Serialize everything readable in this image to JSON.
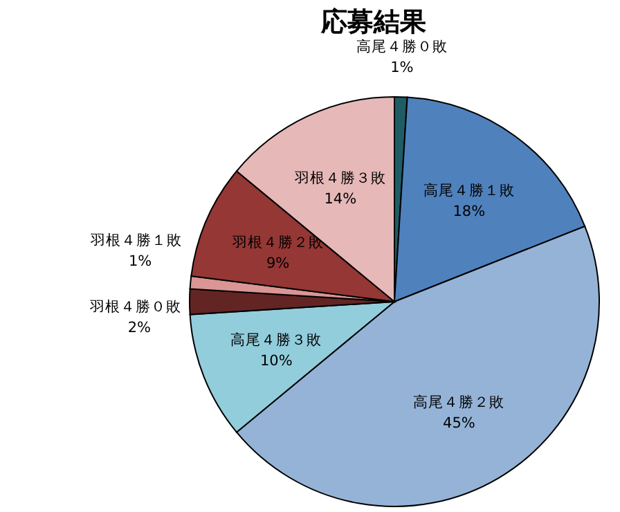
{
  "chart_data": {
    "type": "pie",
    "title": "応募結果",
    "categories": [
      "高尾４勝０敗",
      "高尾４勝１敗",
      "高尾４勝２敗",
      "高尾４勝３敗",
      "羽根４勝０敗",
      "羽根４勝１敗",
      "羽根４勝２敗",
      "羽根４勝３敗"
    ],
    "values": [
      1,
      18,
      45,
      10,
      2,
      1,
      9,
      14
    ],
    "colors": [
      "#1f5c66",
      "#4f81bd",
      "#95b3d7",
      "#92cddc",
      "#632523",
      "#d99694",
      "#953735",
      "#e6b9b8"
    ],
    "value_labels": [
      "1%",
      "18%",
      "45%",
      "10%",
      "2%",
      "1%",
      "9%",
      "14%"
    ]
  }
}
